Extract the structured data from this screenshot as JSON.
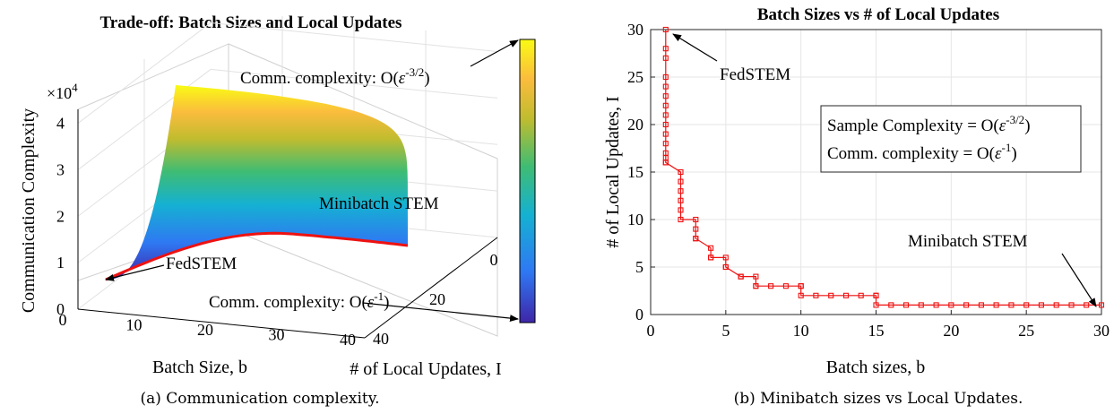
{
  "chart_data": [
    {
      "type": "surface",
      "title": "Trade-off: Batch Sizes and Local Updates",
      "xlabel": "Batch Size, b",
      "ylabel": "# of Local Updates, I",
      "zlabel": "Communication Complexity",
      "z_multiplier": "×10",
      "z_multiplier_exp": "4",
      "x_ticks": [
        "0",
        "10",
        "20",
        "30",
        "40"
      ],
      "y_ticks": [
        "0",
        "20",
        "40"
      ],
      "z_ticks": [
        "0",
        "1",
        "2",
        "3",
        "4"
      ],
      "xlim": [
        0,
        40
      ],
      "ylim": [
        0,
        40
      ],
      "zlim": [
        0,
        4.3
      ],
      "colormap": [
        "#3e26a8",
        "#2f78f3",
        "#15b1d2",
        "#3ebc74",
        "#c0bc2f",
        "#fbbc3d",
        "#f9fb14"
      ],
      "frontier_color": "#ee1111",
      "frontier_label": "Minibatch STEM",
      "fedstem_label": "FedSTEM",
      "annotation_top_prefix": "Comm. complexity: O(",
      "annotation_top_eps": "ε",
      "annotation_top_exp": "-3/2",
      "annotation_top_suffix": ")",
      "annotation_bottom_prefix": "Comm. complexity: O(",
      "annotation_bottom_eps": "ε",
      "annotation_bottom_exp": "-1",
      "annotation_bottom_suffix": ")",
      "caption": "(a) Communication complexity."
    },
    {
      "type": "line",
      "title": "Batch Sizes vs # of Local Updates",
      "xlabel": "Batch sizes, b",
      "ylabel": "# of Local Updates, I",
      "xlim": [
        0,
        30
      ],
      "ylim": [
        0,
        30
      ],
      "x_ticks": [
        "0",
        "5",
        "10",
        "15",
        "20",
        "25",
        "30"
      ],
      "y_ticks": [
        "0",
        "5",
        "10",
        "15",
        "20",
        "25",
        "30"
      ],
      "grid": true,
      "color": "#ee1111",
      "series": [
        {
          "x": [
            1,
            1,
            1,
            1,
            1,
            1,
            1,
            1,
            1,
            1,
            1,
            1,
            1,
            1,
            1,
            2,
            2,
            2,
            2,
            2,
            2,
            3,
            3,
            3,
            3,
            4,
            4,
            4,
            5,
            5,
            5,
            6,
            6,
            6,
            7,
            7,
            7,
            8,
            9,
            10,
            10,
            10,
            11,
            12,
            13,
            14,
            15,
            15,
            15,
            16,
            17,
            18,
            19,
            20,
            21,
            22,
            23,
            24,
            25,
            26,
            27,
            28,
            29,
            30
          ],
          "y": [
            30,
            28,
            27,
            25,
            24,
            23,
            22,
            21,
            20,
            19,
            18,
            17,
            16.5,
            16,
            16,
            15,
            14,
            13,
            12,
            11,
            10,
            10,
            9,
            8,
            8,
            7,
            6,
            6,
            6,
            5,
            5,
            4,
            4,
            4,
            4,
            3,
            3,
            3,
            3,
            3,
            3,
            2,
            2,
            2,
            2,
            2,
            2,
            2,
            1,
            1,
            1,
            1,
            1,
            1,
            1,
            1,
            1,
            1,
            1,
            1,
            1,
            1,
            1,
            1
          ]
        }
      ],
      "legend_box_line1_prefix": "Sample Complexity = O(",
      "legend_box_line1_eps": "ε",
      "legend_box_line1_exp": "-3/2",
      "legend_box_line1_suffix": ")",
      "legend_box_line2_prefix": "Comm. complexity = O(",
      "legend_box_line2_eps": "ε",
      "legend_box_line2_exp": "-1",
      "legend_box_line2_suffix": ")",
      "annotation_top": "FedSTEM",
      "annotation_bottom": "Minibatch STEM",
      "caption": "(b) Minibatch sizes vs Local Updates."
    }
  ]
}
